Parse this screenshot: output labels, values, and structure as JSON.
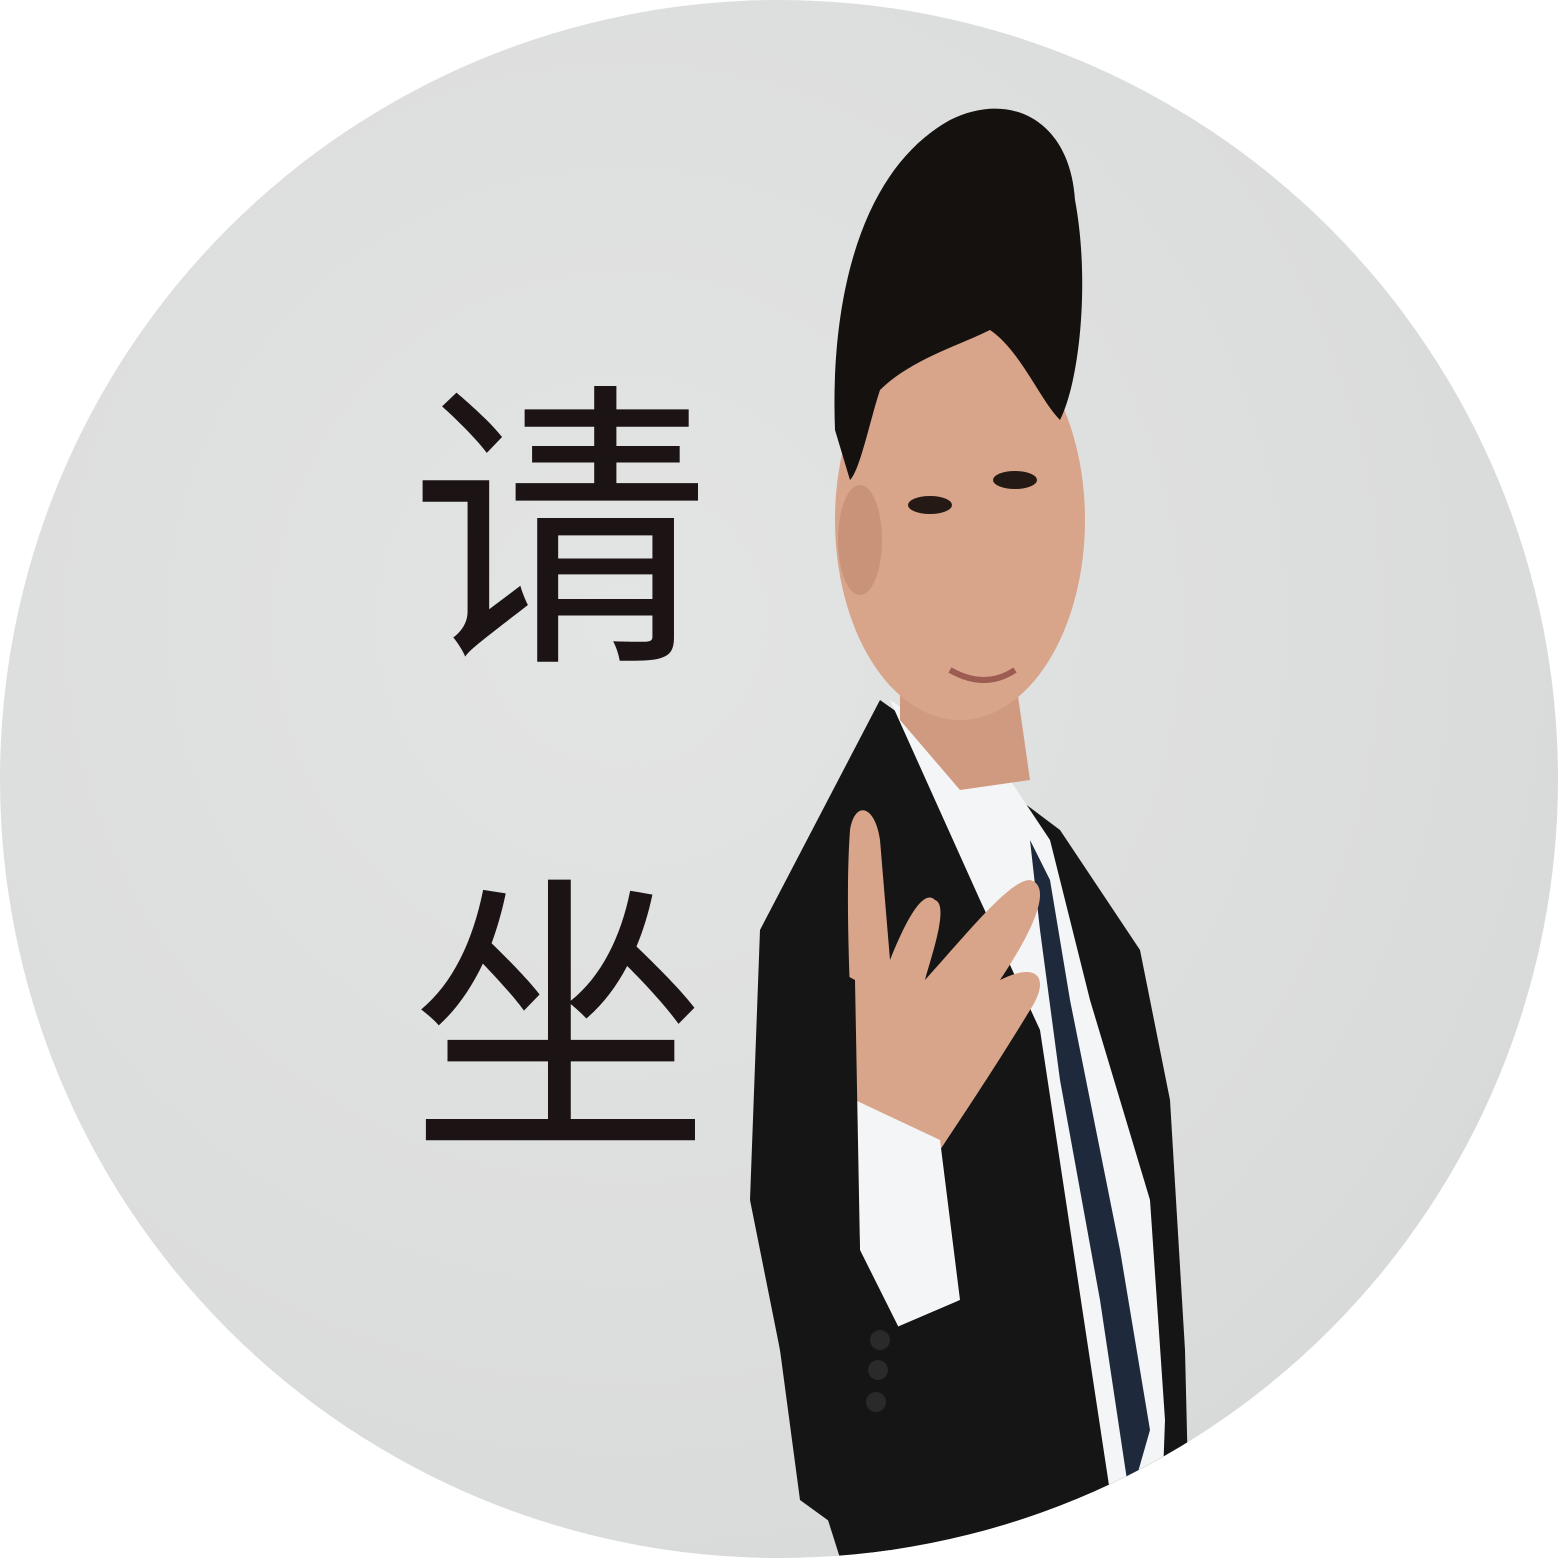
{
  "caption": {
    "char_1": "请",
    "char_2": "坐"
  },
  "colors": {
    "background": "#dcdddd",
    "text": "#1c1414",
    "suit": "#151515",
    "shirt": "#f4f5f7",
    "tie": "#1e2a3c",
    "skin": "#d8a58a",
    "hair": "#15110f"
  }
}
